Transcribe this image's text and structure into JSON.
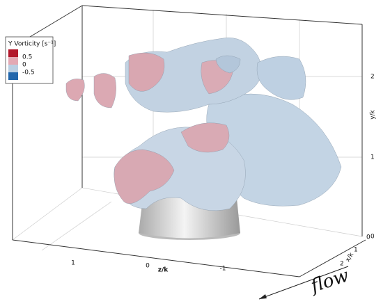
{
  "legend": {
    "title": "Y Vorticity [s⁻¹]",
    "labels": [
      "0.5",
      "0",
      "-0.5"
    ],
    "colors": [
      "#b2182b",
      "#e3a9b4",
      "#b9cfe3",
      "#2166ac"
    ]
  },
  "y_axis": {
    "label": "y/k",
    "ticks": [
      "0",
      "1",
      "2"
    ]
  },
  "z_axis": {
    "label": "z/k",
    "ticks": [
      "1",
      "0",
      "-1"
    ]
  },
  "x_axis": {
    "label": "x/k",
    "ticks": [
      "0",
      "1",
      "2"
    ]
  },
  "annotation": "flow"
}
